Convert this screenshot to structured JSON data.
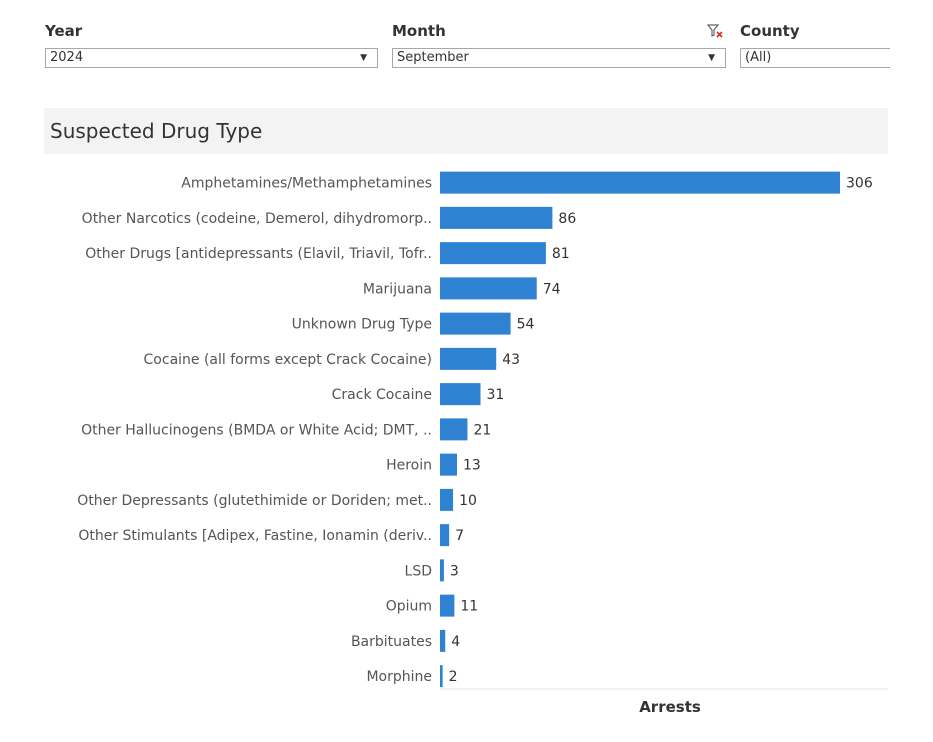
{
  "filters": {
    "year": {
      "label": "Year",
      "value": "2024"
    },
    "month": {
      "label": "Month",
      "value": "September"
    },
    "county": {
      "label": "County",
      "value": "(All)"
    }
  },
  "icons": {
    "dropdown": "chevron-down-icon",
    "clear_filter": "filter-clear-icon"
  },
  "colors": {
    "bar": "#2f82d2",
    "title_band": "#f3f3f3"
  },
  "chart_data": {
    "type": "bar",
    "orientation": "horizontal",
    "title": "Suspected Drug Type",
    "xlabel": "Arrests",
    "ylabel": "",
    "xlim": [
      0,
      306
    ],
    "grid": false,
    "categories": [
      "Amphetamines/Methamphetamines",
      "Other Narcotics (codeine, Demerol, dihydromorp..",
      "Other Drugs [antidepressants (Elavil, Triavil, Tofr..",
      "Marijuana",
      "Unknown Drug Type",
      "Cocaine (all forms except Crack Cocaine)",
      "Crack Cocaine",
      "Other Hallucinogens (BMDA or White Acid; DMT, ..",
      "Heroin",
      "Other Depressants (glutethimide or Doriden; met..",
      "Other Stimulants [Adipex, Fastine, Ionamin (deriv..",
      "LSD",
      "Opium",
      "Barbituates",
      "Morphine"
    ],
    "values": [
      306,
      86,
      81,
      74,
      54,
      43,
      31,
      21,
      13,
      10,
      7,
      3,
      11,
      4,
      2
    ]
  }
}
